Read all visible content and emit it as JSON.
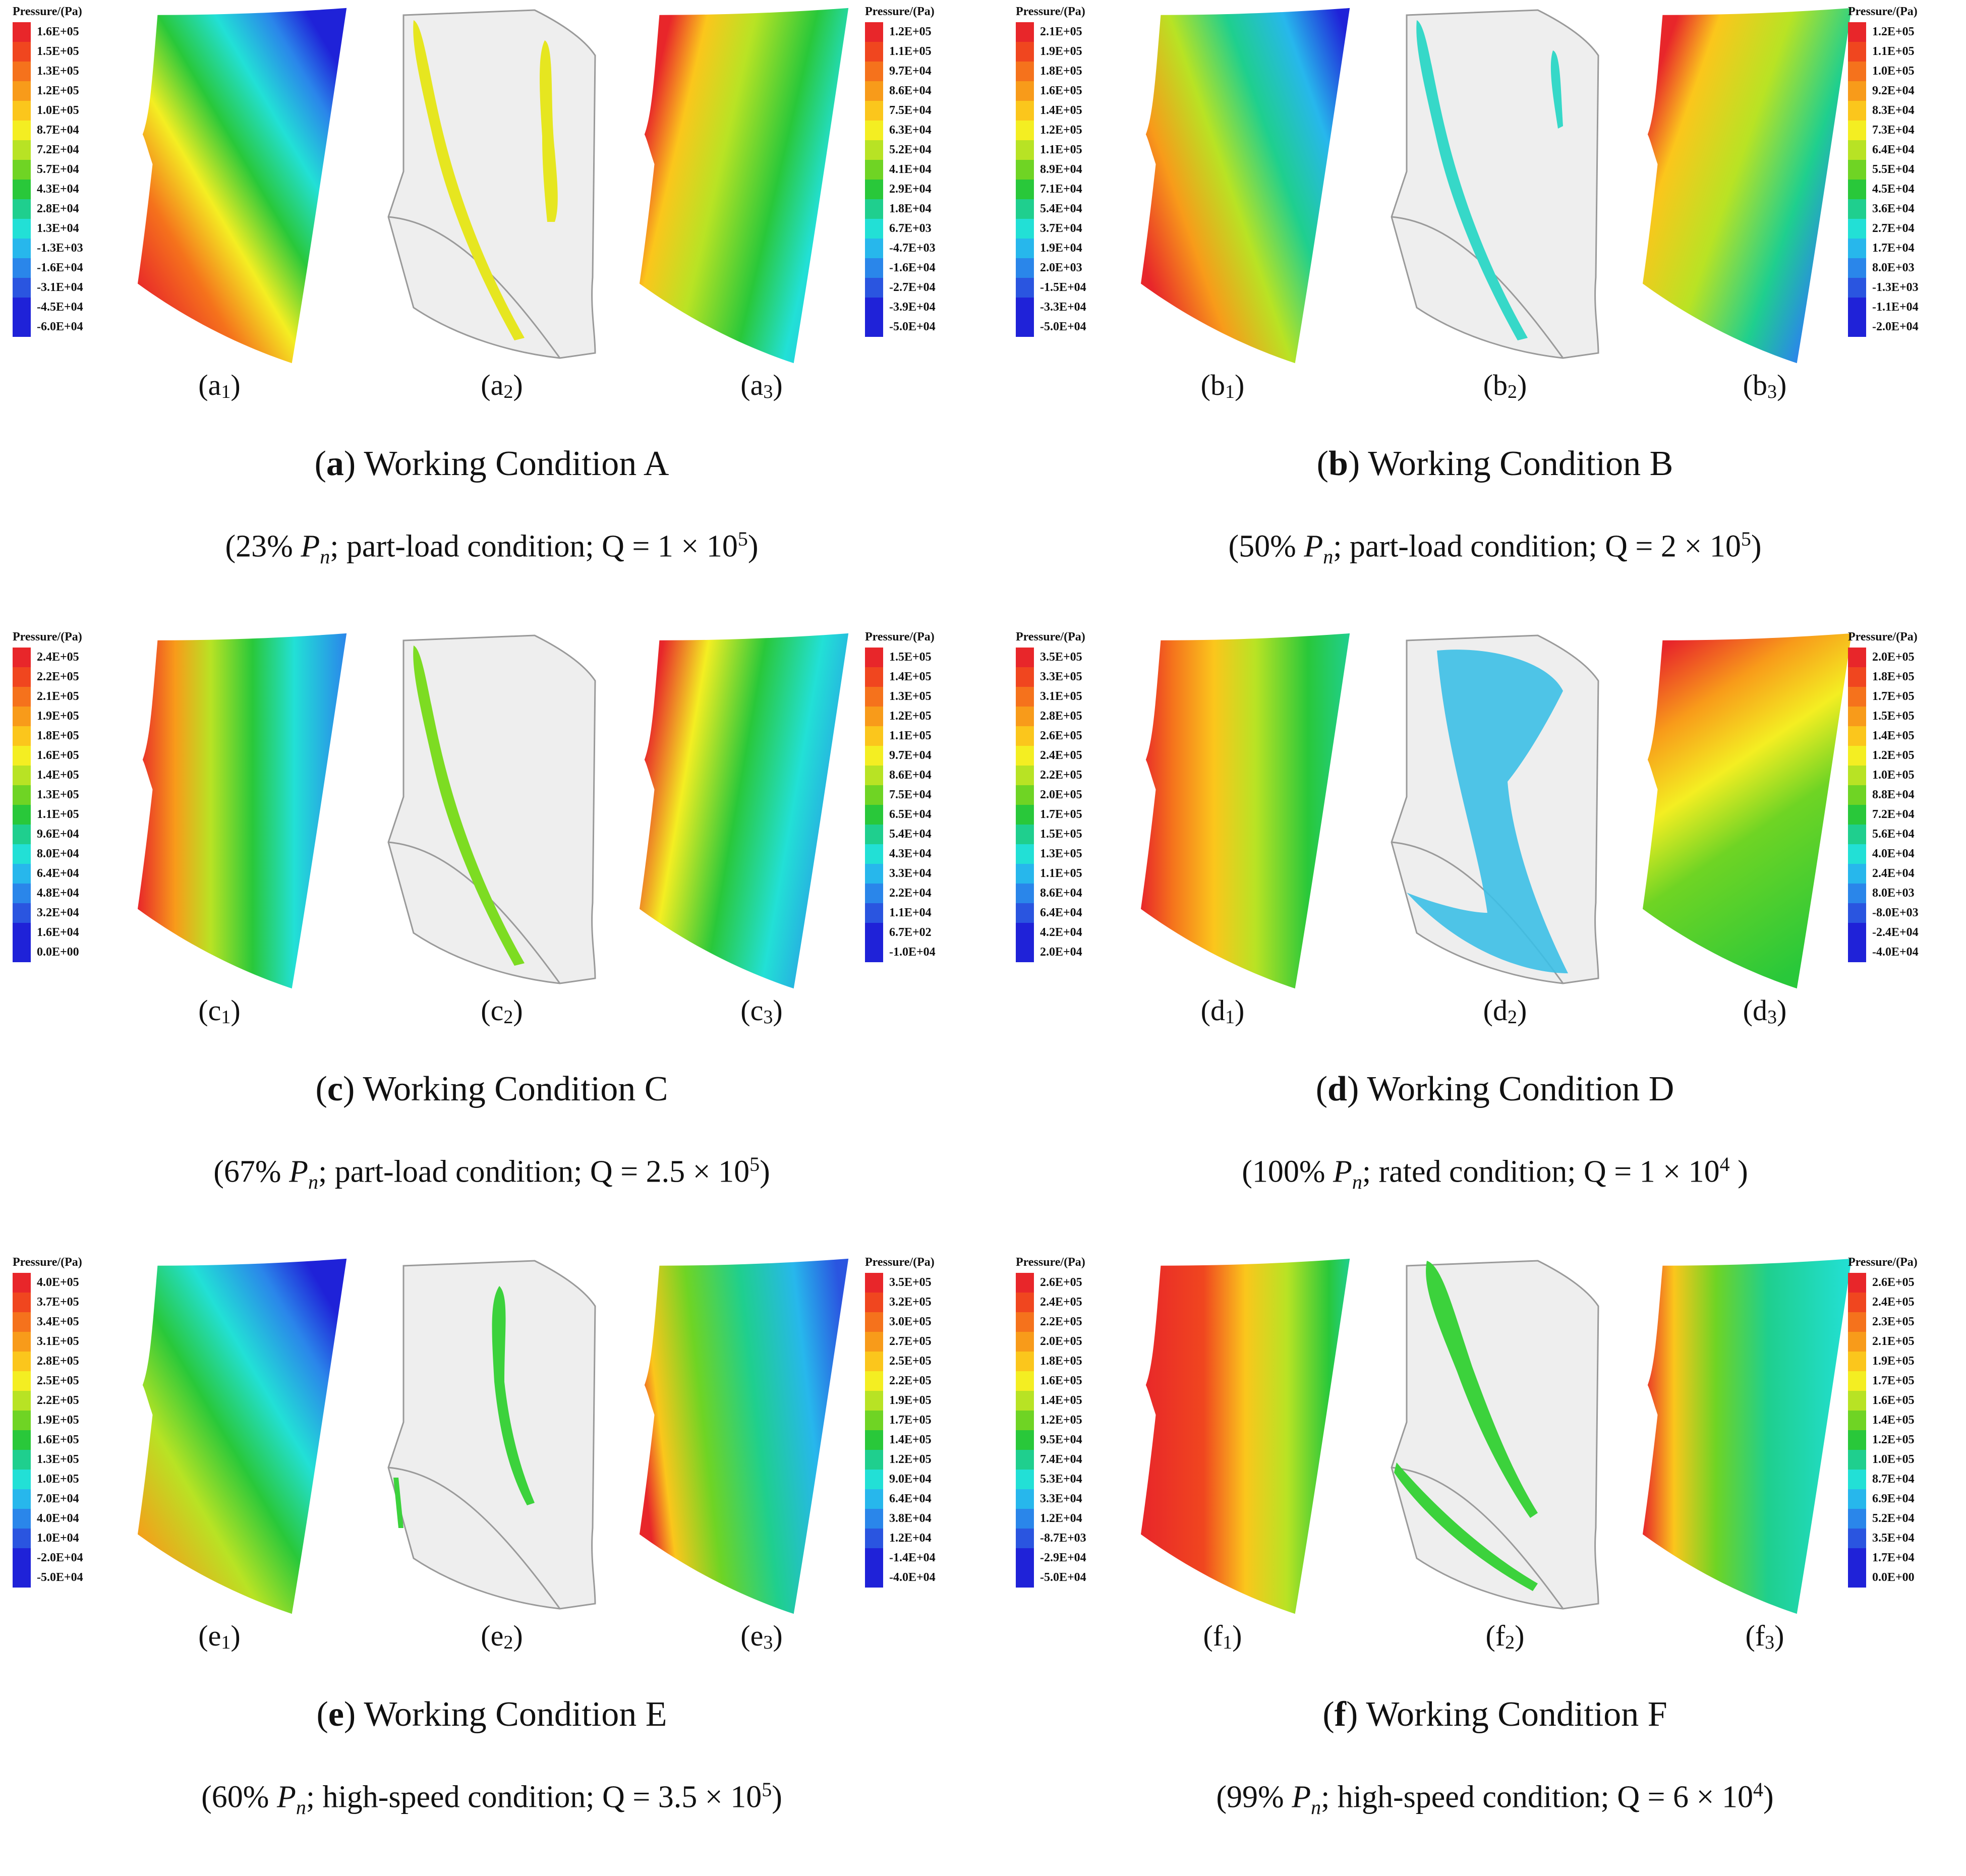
{
  "legend_title": "Pressure/(Pa)",
  "colors": [
    "#e8262a",
    "#f0461f",
    "#f5721c",
    "#f89b1a",
    "#fbc61c",
    "#f4ee22",
    "#b8e324",
    "#6fd424",
    "#29c83a",
    "#1fcf8e",
    "#22e0d6",
    "#27b7ec",
    "#2a86ea",
    "#2a55e0",
    "#1f22d8"
  ],
  "panels": [
    {
      "letter": "a",
      "caption_rest": "Working Condition A",
      "condition_pre": "(23% ",
      "condition_post": "; part-load condition; Q = 1 × 10",
      "condition_exp": "5",
      "condition_end": ")",
      "subs": [
        {
          "l": "(a",
          "n": "1",
          ")": ")"
        },
        {
          "l": "(a",
          "n": "2",
          ")": ")"
        },
        {
          "l": "(a",
          "n": "3",
          ")": ")"
        }
      ],
      "vortex_color": "#e6e620",
      "legend1": [
        "1.6E+05",
        "1.5E+05",
        "1.3E+05",
        "1.2E+05",
        "1.0E+05",
        "8.7E+04",
        "7.2E+04",
        "5.7E+04",
        "4.3E+04",
        "2.8E+04",
        "1.3E+04",
        "-1.3E+03",
        "-1.6E+04",
        "-3.1E+04",
        "-4.5E+04",
        "-6.0E+04"
      ],
      "legend3": [
        "1.2E+05",
        "1.1E+05",
        "9.7E+04",
        "8.6E+04",
        "7.5E+04",
        "6.3E+04",
        "5.2E+04",
        "4.1E+04",
        "2.9E+04",
        "1.8E+04",
        "6.7E+03",
        "-4.7E+03",
        "-1.6E+04",
        "-2.7E+04",
        "-3.9E+04",
        "-5.0E+04"
      ]
    },
    {
      "letter": "b",
      "caption_rest": "Working Condition B",
      "condition_pre": "(50% ",
      "condition_post": "; part-load condition; Q = 2 × 10",
      "condition_exp": "5",
      "condition_end": ")",
      "subs": [
        {
          "l": "(b",
          "n": "1",
          ")": ")"
        },
        {
          "l": "(b",
          "n": "2",
          ")": ")"
        },
        {
          "l": "(b",
          "n": "3",
          ")": ")"
        }
      ],
      "vortex_color": "#36d8c8",
      "legend1": [
        "2.1E+05",
        "1.9E+05",
        "1.8E+05",
        "1.6E+05",
        "1.4E+05",
        "1.2E+05",
        "1.1E+05",
        "8.9E+04",
        "7.1E+04",
        "5.4E+04",
        "3.7E+04",
        "1.9E+04",
        "2.0E+03",
        "-1.5E+04",
        "-3.3E+04",
        "-5.0E+04"
      ],
      "legend3": [
        "1.2E+05",
        "1.1E+05",
        "1.0E+05",
        "9.2E+04",
        "8.3E+04",
        "7.3E+04",
        "6.4E+04",
        "5.5E+04",
        "4.5E+04",
        "3.6E+04",
        "2.7E+04",
        "1.7E+04",
        "8.0E+03",
        "-1.3E+03",
        "-1.1E+04",
        "-2.0E+04"
      ]
    },
    {
      "letter": "c",
      "caption_rest": "Working Condition C",
      "condition_pre": "(67% ",
      "condition_post": "; part-load condition; Q = 2.5 × 10",
      "condition_exp": "5",
      "condition_end": ")",
      "subs": [
        {
          "l": "(c",
          "n": "1",
          ")": ")"
        },
        {
          "l": "(c",
          "n": "2",
          ")": ")"
        },
        {
          "l": "(c",
          "n": "3",
          ")": ")"
        }
      ],
      "vortex_color": "#7ddc22",
      "legend1": [
        "2.4E+05",
        "2.2E+05",
        "2.1E+05",
        "1.9E+05",
        "1.8E+05",
        "1.6E+05",
        "1.4E+05",
        "1.3E+05",
        "1.1E+05",
        "9.6E+04",
        "8.0E+04",
        "6.4E+04",
        "4.8E+04",
        "3.2E+04",
        "1.6E+04",
        "0.0E+00"
      ],
      "legend3": [
        "1.5E+05",
        "1.4E+05",
        "1.3E+05",
        "1.2E+05",
        "1.1E+05",
        "9.7E+04",
        "8.6E+04",
        "7.5E+04",
        "6.5E+04",
        "5.4E+04",
        "4.3E+04",
        "3.3E+04",
        "2.2E+04",
        "1.1E+04",
        "6.7E+02",
        "-1.0E+04"
      ]
    },
    {
      "letter": "d",
      "caption_rest": "Working Condition D",
      "condition_pre": "(100% ",
      "condition_post": "; rated condition; Q = 1 × 10",
      "condition_exp": "4",
      "condition_end": " )",
      "subs": [
        {
          "l": "(d",
          "n": "1",
          ")": ")"
        },
        {
          "l": "(d",
          "n": "2",
          ")": ")"
        },
        {
          "l": "(d",
          "n": "3",
          ")": ")"
        }
      ],
      "vortex_color": "#3cbfe6",
      "legend1": [
        "3.5E+05",
        "3.3E+05",
        "3.1E+05",
        "2.8E+05",
        "2.6E+05",
        "2.4E+05",
        "2.2E+05",
        "2.0E+05",
        "1.7E+05",
        "1.5E+05",
        "1.3E+05",
        "1.1E+05",
        "8.6E+04",
        "6.4E+04",
        "4.2E+04",
        "2.0E+04"
      ],
      "legend3": [
        "2.0E+05",
        "1.8E+05",
        "1.7E+05",
        "1.5E+05",
        "1.4E+05",
        "1.2E+05",
        "1.0E+05",
        "8.8E+04",
        "7.2E+04",
        "5.6E+04",
        "4.0E+04",
        "2.4E+04",
        "8.0E+03",
        "-8.0E+03",
        "-2.4E+04",
        "-4.0E+04"
      ]
    },
    {
      "letter": "e",
      "caption_rest": "Working Condition E",
      "condition_pre": "(60% ",
      "condition_post": "; high-speed condition; Q = 3.5 × 10",
      "condition_exp": "5",
      "condition_end": ")",
      "subs": [
        {
          "l": "(e",
          "n": "1",
          ")": ")"
        },
        {
          "l": "(e",
          "n": "2",
          ")": ")"
        },
        {
          "l": "(e",
          "n": "3",
          ")": ")"
        }
      ],
      "vortex_color": "#3cd23c",
      "legend1": [
        "4.0E+05",
        "3.7E+05",
        "3.4E+05",
        "3.1E+05",
        "2.8E+05",
        "2.5E+05",
        "2.2E+05",
        "1.9E+05",
        "1.6E+05",
        "1.3E+05",
        "1.0E+05",
        "7.0E+04",
        "4.0E+04",
        "1.0E+04",
        "-2.0E+04",
        "-5.0E+04"
      ],
      "legend3": [
        "3.5E+05",
        "3.2E+05",
        "3.0E+05",
        "2.7E+05",
        "2.5E+05",
        "2.2E+05",
        "1.9E+05",
        "1.7E+05",
        "1.4E+05",
        "1.2E+05",
        "9.0E+04",
        "6.4E+04",
        "3.8E+04",
        "1.2E+04",
        "-1.4E+04",
        "-4.0E+04"
      ]
    },
    {
      "letter": "f",
      "caption_rest": "Working Condition F",
      "condition_pre": "(99% ",
      "condition_post": "; high-speed condition; Q = 6 × 10",
      "condition_exp": "4",
      "condition_end": ")",
      "subs": [
        {
          "l": "(f",
          "n": "1",
          ")": ")"
        },
        {
          "l": "(f",
          "n": "2",
          ")": ")"
        },
        {
          "l": "(f",
          "n": "3",
          ")": ")"
        }
      ],
      "vortex_color": "#3cd23c",
      "legend1": [
        "2.6E+05",
        "2.4E+05",
        "2.2E+05",
        "2.0E+05",
        "1.8E+05",
        "1.6E+05",
        "1.4E+05",
        "1.2E+05",
        "9.5E+04",
        "7.4E+04",
        "5.3E+04",
        "3.3E+04",
        "1.2E+04",
        "-8.7E+03",
        "-2.9E+04",
        "-5.0E+04"
      ],
      "legend3": [
        "2.6E+05",
        "2.4E+05",
        "2.3E+05",
        "2.1E+05",
        "1.9E+05",
        "1.7E+05",
        "1.6E+05",
        "1.4E+05",
        "1.2E+05",
        "1.0E+05",
        "8.7E+04",
        "6.9E+04",
        "5.2E+04",
        "3.5E+04",
        "1.7E+04",
        "0.0E+00"
      ]
    }
  ],
  "pn_symbol": "P",
  "pn_sub": "n"
}
